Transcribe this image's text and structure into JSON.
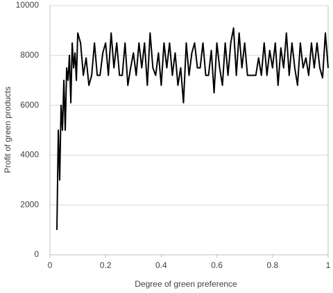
{
  "chart_data": {
    "type": "line",
    "xlabel": "Degree of green preference",
    "ylabel": "Profit of green products",
    "x": [
      0.025,
      0.03,
      0.035,
      0.04,
      0.045,
      0.05,
      0.055,
      0.06,
      0.065,
      0.07,
      0.075,
      0.08,
      0.085,
      0.09,
      0.095,
      0.1,
      0.11,
      0.12,
      0.13,
      0.14,
      0.15,
      0.16,
      0.17,
      0.18,
      0.19,
      0.2,
      0.21,
      0.22,
      0.23,
      0.24,
      0.25,
      0.26,
      0.27,
      0.28,
      0.29,
      0.3,
      0.31,
      0.32,
      0.33,
      0.34,
      0.35,
      0.36,
      0.37,
      0.38,
      0.39,
      0.4,
      0.41,
      0.42,
      0.43,
      0.44,
      0.45,
      0.46,
      0.47,
      0.48,
      0.49,
      0.5,
      0.51,
      0.52,
      0.53,
      0.54,
      0.55,
      0.56,
      0.57,
      0.58,
      0.59,
      0.6,
      0.61,
      0.62,
      0.63,
      0.64,
      0.65,
      0.66,
      0.67,
      0.68,
      0.69,
      0.7,
      0.71,
      0.72,
      0.73,
      0.74,
      0.75,
      0.76,
      0.77,
      0.78,
      0.79,
      0.8,
      0.81,
      0.82,
      0.83,
      0.84,
      0.85,
      0.86,
      0.87,
      0.88,
      0.89,
      0.9,
      0.91,
      0.92,
      0.93,
      0.94,
      0.95,
      0.96,
      0.97,
      0.98,
      0.99,
      1
    ],
    "series": [
      {
        "color": "#000000",
        "values": [
          1000,
          5000,
          3000,
          6000,
          5000,
          7000,
          5000,
          7500,
          7000,
          8000,
          6100,
          8500,
          7500,
          8100,
          7000,
          8900,
          8500,
          7200,
          7900,
          6800,
          7200,
          8500,
          7200,
          7200,
          8100,
          8500,
          7200,
          8900,
          7500,
          8500,
          7200,
          7200,
          8500,
          6800,
          7500,
          8100,
          7200,
          8500,
          7500,
          8500,
          6800,
          8900,
          7500,
          7200,
          8100,
          6800,
          8500,
          7500,
          8500,
          7200,
          8100,
          6800,
          7500,
          6100,
          8500,
          7200,
          8100,
          8500,
          7500,
          7500,
          8500,
          7200,
          7200,
          8200,
          6500,
          8500,
          7500,
          6800,
          8500,
          7200,
          8500,
          9100,
          7200,
          8900,
          7500,
          8500,
          7200,
          7200,
          7200,
          7200,
          7900,
          7200,
          8500,
          7200,
          8200,
          7500,
          8500,
          6800,
          8300,
          7500,
          8900,
          7200,
          8500,
          7500,
          6800,
          8500,
          7500,
          7900,
          7200,
          8500,
          7500,
          8500,
          7500,
          7100,
          8900,
          7500
        ]
      }
    ],
    "xlim": [
      0,
      1
    ],
    "xticks": [
      0,
      0.2,
      0.4,
      0.6,
      0.8,
      1
    ],
    "ylim": [
      0,
      10000
    ],
    "yticks": [
      0,
      2000,
      4000,
      6000,
      8000,
      10000
    ],
    "grid": true
  }
}
